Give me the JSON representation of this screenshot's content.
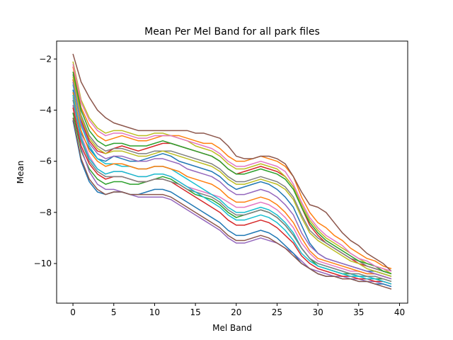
{
  "chart_data": {
    "type": "line",
    "title": "Mean Per Mel Band for all park files",
    "xlabel": "Mel Band",
    "ylabel": "Mean",
    "xlim": [
      -2,
      41
    ],
    "ylim": [
      -11.55,
      -1.3
    ],
    "xticks": [
      0,
      5,
      10,
      15,
      20,
      25,
      30,
      35,
      40
    ],
    "yticks": [
      -10,
      -8,
      -6,
      -4,
      -2
    ],
    "tick_labels": {
      "x": [
        "0",
        "5",
        "10",
        "15",
        "20",
        "25",
        "30",
        "35",
        "40"
      ],
      "y": [
        "−10",
        "−8",
        "−6",
        "−4",
        "−2"
      ]
    },
    "grid": false,
    "legend": "none",
    "x": [
      0,
      1,
      2,
      3,
      4,
      5,
      6,
      7,
      8,
      9,
      10,
      11,
      12,
      13,
      14,
      15,
      16,
      17,
      18,
      19,
      20,
      21,
      22,
      23,
      24,
      25,
      26,
      27,
      28,
      29,
      30,
      31,
      32,
      33,
      34,
      35,
      36,
      37,
      38,
      39
    ],
    "series": [
      {
        "color": "#1f77b4",
        "values": [
          -3.2,
          -4.9,
          -5.5,
          -5.9,
          -6.0,
          -5.8,
          -5.9,
          -6.0,
          -6.0,
          -5.9,
          -5.8,
          -5.7,
          -5.8,
          -6.0,
          -6.1,
          -6.2,
          -6.3,
          -6.4,
          -6.6,
          -6.9,
          -7.1,
          -7.0,
          -6.9,
          -6.8,
          -6.9,
          -7.1,
          -7.4,
          -7.8,
          -8.5,
          -9.2,
          -9.6,
          -9.8,
          -9.9,
          -10.0,
          -10.1,
          -10.2,
          -10.3,
          -10.3,
          -10.4,
          -10.5
        ]
      },
      {
        "color": "#ff7f0e",
        "values": [
          -2.3,
          -3.9,
          -4.6,
          -5.0,
          -5.2,
          -5.1,
          -5.0,
          -5.1,
          -5.2,
          -5.2,
          -5.1,
          -5.0,
          -5.0,
          -5.0,
          -5.1,
          -5.2,
          -5.3,
          -5.3,
          -5.5,
          -5.8,
          -6.0,
          -6.0,
          -5.9,
          -5.8,
          -5.9,
          -6.0,
          -6.2,
          -6.6,
          -7.4,
          -8.0,
          -8.4,
          -8.6,
          -8.9,
          -9.1,
          -9.4,
          -9.6,
          -9.8,
          -9.9,
          -10.1,
          -10.2
        ]
      },
      {
        "color": "#2ca02c",
        "values": [
          -4.1,
          -5.6,
          -6.3,
          -6.7,
          -6.9,
          -6.8,
          -6.8,
          -6.9,
          -6.9,
          -6.8,
          -6.7,
          -6.6,
          -6.7,
          -6.9,
          -7.1,
          -7.3,
          -7.4,
          -7.5,
          -7.7,
          -8.0,
          -8.2,
          -8.1,
          -8.0,
          -7.9,
          -8.0,
          -8.2,
          -8.5,
          -8.9,
          -9.4,
          -9.8,
          -10.1,
          -10.2,
          -10.3,
          -10.4,
          -10.4,
          -10.5,
          -10.5,
          -10.6,
          -10.6,
          -10.7
        ]
      },
      {
        "color": "#d62728",
        "values": [
          -2.8,
          -4.4,
          -5.2,
          -5.6,
          -5.7,
          -5.5,
          -5.4,
          -5.5,
          -5.6,
          -5.5,
          -5.4,
          -5.3,
          -5.3,
          -5.4,
          -5.5,
          -5.6,
          -5.7,
          -5.8,
          -6.0,
          -6.3,
          -6.5,
          -6.4,
          -6.3,
          -6.2,
          -6.3,
          -6.4,
          -6.6,
          -7.0,
          -7.8,
          -8.5,
          -8.9,
          -9.2,
          -9.4,
          -9.6,
          -9.8,
          -10.0,
          -10.1,
          -10.2,
          -10.3,
          -10.4
        ]
      },
      {
        "color": "#9467bd",
        "values": [
          -3.8,
          -5.5,
          -6.4,
          -6.9,
          -7.1,
          -7.1,
          -7.2,
          -7.3,
          -7.4,
          -7.4,
          -7.4,
          -7.4,
          -7.5,
          -7.7,
          -7.9,
          -8.1,
          -8.3,
          -8.5,
          -8.7,
          -9.0,
          -9.2,
          -9.2,
          -9.1,
          -9.0,
          -9.1,
          -9.2,
          -9.4,
          -9.6,
          -9.9,
          -10.2,
          -10.3,
          -10.4,
          -10.5,
          -10.5,
          -10.6,
          -10.6,
          -10.7,
          -10.7,
          -10.8,
          -10.9
        ]
      },
      {
        "color": "#8c564b",
        "values": [
          -1.8,
          -2.9,
          -3.5,
          -4.0,
          -4.3,
          -4.5,
          -4.6,
          -4.7,
          -4.8,
          -4.8,
          -4.8,
          -4.8,
          -4.8,
          -4.8,
          -4.8,
          -4.9,
          -4.9,
          -5.0,
          -5.1,
          -5.4,
          -5.8,
          -5.9,
          -5.9,
          -5.8,
          -5.8,
          -5.9,
          -6.1,
          -6.6,
          -7.2,
          -7.7,
          -7.8,
          -8.0,
          -8.4,
          -8.8,
          -9.1,
          -9.3,
          -9.6,
          -9.8,
          -10.0,
          -10.3
        ]
      },
      {
        "color": "#e377c2",
        "values": [
          -3.5,
          -5.0,
          -5.8,
          -6.3,
          -6.5,
          -6.4,
          -6.4,
          -6.5,
          -6.6,
          -6.6,
          -6.5,
          -6.5,
          -6.6,
          -6.8,
          -7.0,
          -7.1,
          -7.2,
          -7.3,
          -7.4,
          -7.6,
          -7.8,
          -7.8,
          -7.7,
          -7.6,
          -7.7,
          -7.9,
          -8.2,
          -8.6,
          -9.2,
          -9.6,
          -9.9,
          -10.0,
          -10.1,
          -10.2,
          -10.3,
          -10.3,
          -10.4,
          -10.4,
          -10.5,
          -10.6
        ]
      },
      {
        "color": "#7f7f7f",
        "values": [
          -2.6,
          -4.2,
          -5.0,
          -5.4,
          -5.6,
          -5.5,
          -5.5,
          -5.6,
          -5.7,
          -5.7,
          -5.6,
          -5.6,
          -5.6,
          -5.7,
          -5.8,
          -5.9,
          -6.0,
          -6.1,
          -6.3,
          -6.6,
          -6.8,
          -6.8,
          -6.7,
          -6.6,
          -6.7,
          -6.8,
          -7.0,
          -7.4,
          -8.1,
          -8.7,
          -9.0,
          -9.2,
          -9.4,
          -9.6,
          -9.8,
          -9.9,
          -10.1,
          -10.2,
          -10.3,
          -10.4
        ]
      },
      {
        "color": "#bcbd22",
        "values": [
          -2.1,
          -3.6,
          -4.3,
          -4.7,
          -4.9,
          -4.8,
          -4.8,
          -4.9,
          -5.0,
          -5.0,
          -4.9,
          -4.9,
          -5.0,
          -5.1,
          -5.2,
          -5.4,
          -5.5,
          -5.6,
          -5.8,
          -6.1,
          -6.3,
          -6.3,
          -6.2,
          -6.1,
          -6.2,
          -6.3,
          -6.6,
          -7.0,
          -7.7,
          -8.3,
          -8.7,
          -9.0,
          -9.2,
          -9.4,
          -9.6,
          -9.8,
          -10.0,
          -10.1,
          -10.2,
          -10.4
        ]
      },
      {
        "color": "#17becf",
        "values": [
          -3.0,
          -4.6,
          -5.4,
          -5.9,
          -6.1,
          -6.1,
          -6.2,
          -6.2,
          -6.3,
          -6.3,
          -6.2,
          -6.2,
          -6.3,
          -6.5,
          -6.7,
          -6.9,
          -7.1,
          -7.3,
          -7.5,
          -7.8,
          -8.0,
          -8.0,
          -7.9,
          -7.8,
          -7.9,
          -8.1,
          -8.4,
          -8.8,
          -9.4,
          -9.8,
          -10.0,
          -10.1,
          -10.2,
          -10.3,
          -10.4,
          -10.5,
          -10.5,
          -10.6,
          -10.7,
          -10.8
        ]
      },
      {
        "color": "#1f77b4",
        "values": [
          -4.4,
          -6.0,
          -6.8,
          -7.2,
          -7.3,
          -7.2,
          -7.2,
          -7.3,
          -7.3,
          -7.2,
          -7.1,
          -7.1,
          -7.2,
          -7.4,
          -7.6,
          -7.8,
          -8.0,
          -8.2,
          -8.4,
          -8.7,
          -8.9,
          -8.9,
          -8.8,
          -8.7,
          -8.8,
          -9.0,
          -9.3,
          -9.6,
          -10.0,
          -10.2,
          -10.4,
          -10.5,
          -10.5,
          -10.6,
          -10.6,
          -10.7,
          -10.7,
          -10.8,
          -10.8,
          -10.9
        ]
      },
      {
        "color": "#ff7f0e",
        "values": [
          -3.3,
          -4.8,
          -5.6,
          -6.0,
          -6.2,
          -6.1,
          -6.1,
          -6.2,
          -6.3,
          -6.3,
          -6.2,
          -6.2,
          -6.3,
          -6.4,
          -6.6,
          -6.7,
          -6.8,
          -6.9,
          -7.1,
          -7.4,
          -7.6,
          -7.6,
          -7.5,
          -7.4,
          -7.5,
          -7.7,
          -8.0,
          -8.4,
          -9.0,
          -9.5,
          -9.8,
          -9.9,
          -10.0,
          -10.1,
          -10.2,
          -10.3,
          -10.4,
          -10.4,
          -10.5,
          -10.6
        ]
      },
      {
        "color": "#2ca02c",
        "values": [
          -2.5,
          -4.0,
          -4.8,
          -5.2,
          -5.4,
          -5.3,
          -5.3,
          -5.4,
          -5.4,
          -5.4,
          -5.3,
          -5.2,
          -5.3,
          -5.4,
          -5.5,
          -5.6,
          -5.7,
          -5.8,
          -6.0,
          -6.3,
          -6.5,
          -6.5,
          -6.4,
          -6.3,
          -6.4,
          -6.5,
          -6.7,
          -7.1,
          -7.8,
          -8.4,
          -8.8,
          -9.1,
          -9.3,
          -9.5,
          -9.7,
          -9.9,
          -10.0,
          -10.1,
          -10.3,
          -10.4
        ]
      },
      {
        "color": "#d62728",
        "values": [
          -3.9,
          -5.4,
          -6.1,
          -6.5,
          -6.7,
          -6.6,
          -6.6,
          -6.7,
          -6.8,
          -6.8,
          -6.7,
          -6.7,
          -6.8,
          -7.0,
          -7.2,
          -7.4,
          -7.6,
          -7.8,
          -8.0,
          -8.3,
          -8.5,
          -8.5,
          -8.4,
          -8.3,
          -8.4,
          -8.6,
          -8.9,
          -9.2,
          -9.7,
          -10.0,
          -10.2,
          -10.3,
          -10.4,
          -10.5,
          -10.5,
          -10.6,
          -10.6,
          -10.7,
          -10.7,
          -10.8
        ]
      },
      {
        "color": "#9467bd",
        "values": [
          -2.9,
          -4.5,
          -5.3,
          -5.7,
          -5.9,
          -5.8,
          -5.8,
          -5.9,
          -6.0,
          -6.0,
          -5.9,
          -5.9,
          -6.0,
          -6.1,
          -6.3,
          -6.4,
          -6.5,
          -6.6,
          -6.8,
          -7.1,
          -7.3,
          -7.3,
          -7.2,
          -7.1,
          -7.2,
          -7.4,
          -7.7,
          -8.1,
          -8.8,
          -9.3,
          -9.6,
          -9.8,
          -9.9,
          -10.0,
          -10.1,
          -10.2,
          -10.3,
          -10.4,
          -10.5,
          -10.6
        ]
      },
      {
        "color": "#8c564b",
        "values": [
          -4.3,
          -5.9,
          -6.7,
          -7.1,
          -7.3,
          -7.2,
          -7.2,
          -7.3,
          -7.3,
          -7.3,
          -7.3,
          -7.3,
          -7.4,
          -7.6,
          -7.8,
          -8.0,
          -8.2,
          -8.4,
          -8.6,
          -8.9,
          -9.1,
          -9.1,
          -9.0,
          -8.9,
          -9.0,
          -9.2,
          -9.4,
          -9.7,
          -10.0,
          -10.2,
          -10.4,
          -10.5,
          -10.5,
          -10.6,
          -10.6,
          -10.7,
          -10.7,
          -10.8,
          -10.9,
          -11.0
        ]
      },
      {
        "color": "#e377c2",
        "values": [
          -2.2,
          -3.7,
          -4.4,
          -4.8,
          -5.0,
          -4.9,
          -4.9,
          -5.0,
          -5.1,
          -5.1,
          -5.0,
          -5.0,
          -5.0,
          -5.1,
          -5.2,
          -5.3,
          -5.4,
          -5.5,
          -5.7,
          -6.0,
          -6.2,
          -6.2,
          -6.1,
          -6.0,
          -6.1,
          -6.2,
          -6.4,
          -6.9,
          -7.6,
          -8.2,
          -8.6,
          -8.9,
          -9.1,
          -9.3,
          -9.6,
          -9.8,
          -9.9,
          -10.1,
          -10.2,
          -10.3
        ]
      },
      {
        "color": "#7f7f7f",
        "values": [
          -3.6,
          -5.2,
          -6.0,
          -6.4,
          -6.6,
          -6.6,
          -6.6,
          -6.7,
          -6.8,
          -6.8,
          -6.7,
          -6.7,
          -6.8,
          -6.9,
          -7.1,
          -7.2,
          -7.3,
          -7.4,
          -7.6,
          -7.9,
          -8.1,
          -8.1,
          -8.0,
          -7.9,
          -8.0,
          -8.2,
          -8.5,
          -8.9,
          -9.4,
          -9.8,
          -10.0,
          -10.1,
          -10.2,
          -10.3,
          -10.4,
          -10.4,
          -10.5,
          -10.5,
          -10.6,
          -10.7
        ]
      },
      {
        "color": "#bcbd22",
        "values": [
          -2.7,
          -4.3,
          -5.1,
          -5.5,
          -5.7,
          -5.6,
          -5.6,
          -5.7,
          -5.8,
          -5.8,
          -5.7,
          -5.6,
          -5.7,
          -5.8,
          -5.9,
          -6.0,
          -6.1,
          -6.2,
          -6.4,
          -6.7,
          -6.9,
          -6.9,
          -6.8,
          -6.7,
          -6.8,
          -6.9,
          -7.1,
          -7.5,
          -8.2,
          -8.8,
          -9.1,
          -9.3,
          -9.5,
          -9.7,
          -9.9,
          -10.0,
          -10.2,
          -10.3,
          -10.4,
          -10.5
        ]
      },
      {
        "color": "#17becf",
        "values": [
          -3.4,
          -5.1,
          -5.9,
          -6.3,
          -6.5,
          -6.4,
          -6.4,
          -6.5,
          -6.6,
          -6.6,
          -6.5,
          -6.5,
          -6.6,
          -6.8,
          -7.0,
          -7.2,
          -7.4,
          -7.6,
          -7.8,
          -8.1,
          -8.3,
          -8.3,
          -8.2,
          -8.1,
          -8.2,
          -8.4,
          -8.7,
          -9.1,
          -9.6,
          -9.9,
          -10.1,
          -10.2,
          -10.3,
          -10.4,
          -10.5,
          -10.5,
          -10.6,
          -10.6,
          -10.7,
          -10.8
        ]
      }
    ]
  }
}
